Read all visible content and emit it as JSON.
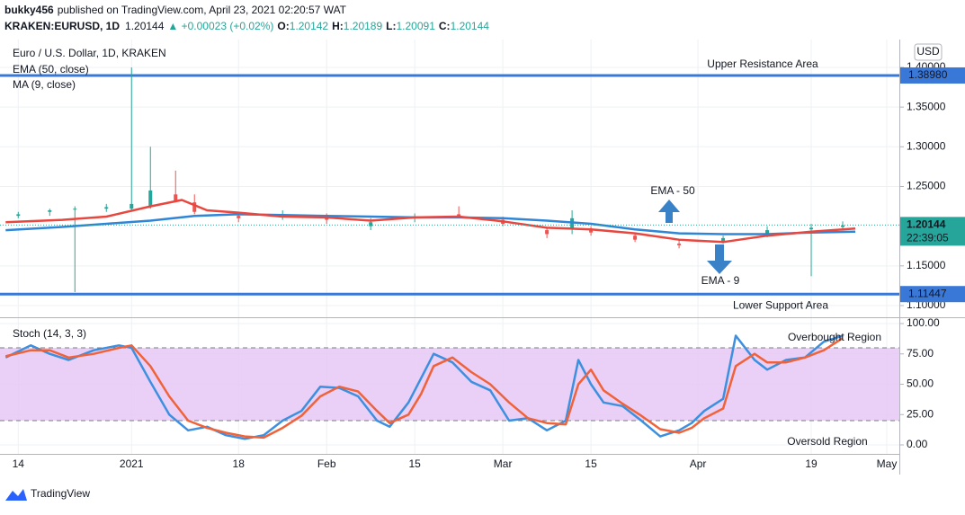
{
  "header": {
    "author": "bukky456",
    "published": "published on TradingView.com, April 23, 2021 02:20:57 WAT",
    "symbol": "KRAKEN:EURUSD, 1D",
    "price": "1.20144",
    "change": "▲ +0.00023 (+0.02%)",
    "ohlc": [
      {
        "label": "O:",
        "value": "1.20142"
      },
      {
        "label": "H:",
        "value": "1.20189"
      },
      {
        "label": "L:",
        "value": "1.20091"
      },
      {
        "label": "C:",
        "value": "1.20144"
      }
    ]
  },
  "footer": {
    "brand": "TradingView"
  },
  "chart_data": [
    {
      "type": "candlestick",
      "title": "Euro / U.S. Dollar, 1D, KRAKEN",
      "currency": "USD",
      "x": [
        0,
        5,
        9,
        14,
        18,
        21,
        25,
        28,
        35,
        42,
        49,
        56,
        63,
        70,
        77,
        84,
        88,
        91,
        98,
        105,
        112,
        119,
        126,
        131
      ],
      "open": [
        1.213,
        1.218,
        1.221,
        1.222,
        1.222,
        1.225,
        1.24,
        1.23,
        1.213,
        1.212,
        1.212,
        1.2,
        1.21,
        1.215,
        1.208,
        1.195,
        1.197,
        1.195,
        1.188,
        1.178,
        1.18,
        1.19,
        1.196,
        1.199
      ],
      "high": [
        1.218,
        1.222,
        1.225,
        1.228,
        1.4,
        1.3,
        1.27,
        1.24,
        1.218,
        1.22,
        1.216,
        1.21,
        1.216,
        1.225,
        1.212,
        1.198,
        1.22,
        1.2,
        1.192,
        1.183,
        1.188,
        1.2,
        1.203,
        1.206
      ],
      "low": [
        1.21,
        1.213,
        1.117,
        1.218,
        1.22,
        1.222,
        1.23,
        1.215,
        1.205,
        1.208,
        1.203,
        1.195,
        1.205,
        1.21,
        1.2,
        1.185,
        1.19,
        1.188,
        1.18,
        1.172,
        1.178,
        1.186,
        1.137,
        1.195
      ],
      "close": [
        1.215,
        1.22,
        1.222,
        1.224,
        1.228,
        1.245,
        1.232,
        1.218,
        1.21,
        1.215,
        1.208,
        1.205,
        1.212,
        1.212,
        1.203,
        1.19,
        1.21,
        1.192,
        1.183,
        1.176,
        1.185,
        1.195,
        1.198,
        1.201
      ],
      "up_color": "#26a69a",
      "down_color": "#ef5350",
      "series": [
        {
          "name": "EMA (50, close)",
          "color": "#2f86d6",
          "x": [
            -2,
            7,
            14,
            21,
            28,
            35,
            42,
            49,
            56,
            63,
            70,
            77,
            84,
            91,
            98,
            105,
            112,
            119,
            126,
            133
          ],
          "values": [
            1.195,
            1.199,
            1.203,
            1.207,
            1.213,
            1.215,
            1.214,
            1.213,
            1.212,
            1.211,
            1.211,
            1.21,
            1.207,
            1.203,
            1.196,
            1.191,
            1.19,
            1.19,
            1.192,
            1.193
          ]
        },
        {
          "name": "MA (9, close)",
          "color": "#e8473f",
          "x": [
            -2,
            7,
            14,
            21,
            26,
            30,
            35,
            42,
            49,
            56,
            63,
            70,
            77,
            84,
            91,
            98,
            105,
            112,
            119,
            126,
            133
          ],
          "values": [
            1.205,
            1.208,
            1.212,
            1.225,
            1.233,
            1.22,
            1.217,
            1.212,
            1.211,
            1.207,
            1.211,
            1.212,
            1.206,
            1.198,
            1.196,
            1.191,
            1.183,
            1.18,
            1.188,
            1.193,
            1.197
          ]
        }
      ],
      "levels": [
        {
          "value": 1.3898,
          "label": "1.38980",
          "name": "Upper Resistance Area",
          "color": "#3a78d8"
        },
        {
          "value": 1.11447,
          "label": "1.11447",
          "name": "Lower Support Area",
          "color": "#3a78d8"
        }
      ],
      "last": {
        "value": 1.20144,
        "label": "1.20144",
        "countdown": "22:39:05",
        "color": "#26a69a"
      },
      "annotations": [
        "EMA - 50",
        "EMA - 9"
      ],
      "ylim": [
        1.0864,
        1.4226
      ],
      "yticks": [
        {
          "value": 1.1,
          "label": "1.10000"
        },
        {
          "value": 1.15,
          "label": "1.15000"
        },
        {
          "value": 1.25,
          "label": "1.25000"
        },
        {
          "value": 1.3,
          "label": "1.30000"
        },
        {
          "value": 1.35,
          "label": "1.35000"
        },
        {
          "value": 1.4,
          "label": "1.40000"
        }
      ],
      "xlim": [
        -2.9,
        140
      ],
      "xticks": [
        {
          "value": 0,
          "label": "14"
        },
        {
          "value": 18,
          "label": "2021"
        },
        {
          "value": 35,
          "label": "18"
        },
        {
          "value": 49,
          "label": "Feb"
        },
        {
          "value": 63,
          "label": "15"
        },
        {
          "value": 77,
          "label": "Mar"
        },
        {
          "value": 91,
          "label": "15"
        },
        {
          "value": 108,
          "label": "Apr"
        },
        {
          "value": 126,
          "label": "19"
        },
        {
          "value": 138,
          "label": "May"
        }
      ],
      "grid": true
    },
    {
      "type": "line",
      "title": "Stoch (14, 3, 3)",
      "x": [
        -2,
        2,
        5,
        8,
        12,
        16,
        18,
        21,
        24,
        27,
        30,
        33,
        36,
        39,
        42,
        45,
        48,
        51,
        54,
        57,
        59,
        62,
        64,
        66,
        69,
        72,
        75,
        78,
        81,
        84,
        87,
        89,
        91,
        93,
        96,
        99,
        102,
        105,
        107,
        109,
        112,
        114,
        117,
        119,
        122,
        125,
        128,
        131
      ],
      "series": [
        {
          "name": "%K",
          "color": "#3d8fe0",
          "values": [
            72,
            82,
            75,
            70,
            78,
            82,
            80,
            52,
            25,
            12,
            15,
            8,
            5,
            8,
            20,
            28,
            48,
            47,
            40,
            20,
            15,
            35,
            55,
            75,
            68,
            52,
            45,
            20,
            22,
            12,
            20,
            70,
            50,
            35,
            32,
            20,
            7,
            12,
            18,
            28,
            38,
            90,
            70,
            62,
            70,
            72,
            85,
            90
          ]
        },
        {
          "name": "%D",
          "color": "#f0623a",
          "values": [
            73,
            78,
            78,
            72,
            75,
            80,
            82,
            65,
            40,
            20,
            14,
            10,
            7,
            6,
            14,
            24,
            40,
            48,
            44,
            28,
            18,
            25,
            42,
            65,
            72,
            60,
            50,
            35,
            22,
            18,
            17,
            50,
            62,
            45,
            34,
            24,
            13,
            10,
            14,
            22,
            30,
            65,
            75,
            68,
            68,
            72,
            78,
            88
          ]
        }
      ],
      "bands": [
        80,
        20
      ],
      "band_color": "#e6c8f5",
      "annotations": [
        "Overbought Region",
        "Oversold Region"
      ],
      "ylim": [
        -7.4,
        103.7
      ],
      "yticks": [
        {
          "value": 0,
          "label": "0.00"
        },
        {
          "value": 25,
          "label": "25.00"
        },
        {
          "value": 50,
          "label": "50.00"
        },
        {
          "value": 75,
          "label": "75.00"
        },
        {
          "value": 100,
          "label": "100.00"
        }
      ],
      "grid": true
    }
  ]
}
